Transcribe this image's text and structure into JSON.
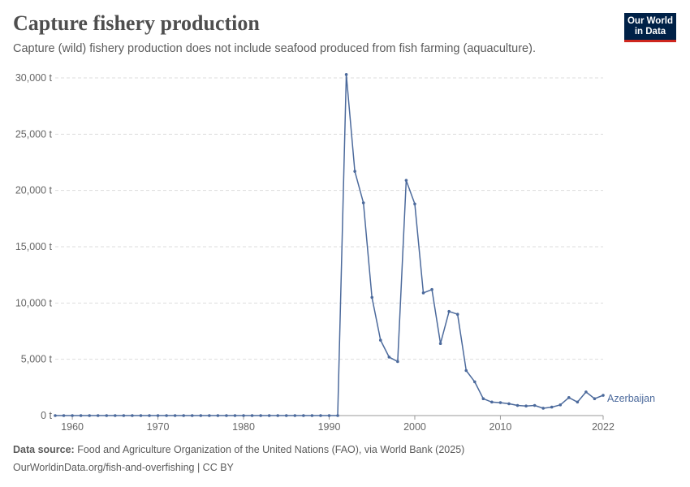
{
  "header": {
    "title": "Capture fishery production",
    "subtitle": "Capture (wild) fishery production does not include seafood produced from fish farming (aquaculture)."
  },
  "logo": {
    "line1": "Our World",
    "line2": "in Data"
  },
  "footer": {
    "source_label": "Data source:",
    "source_text": "Food and Agriculture Organization of the United Nations (FAO), via World Bank (2025)",
    "url_text": "OurWorldinData.org/fish-and-overfishing | CC BY"
  },
  "colors": {
    "series": "#4c6a9c",
    "grid": "#dddddd",
    "axis": "#999999"
  },
  "chart_data": {
    "type": "line",
    "title": "Capture fishery production",
    "xlabel": "",
    "ylabel": "",
    "xlim": [
      1958,
      2022
    ],
    "ylim": [
      0,
      30000
    ],
    "x_ticks": [
      1960,
      1970,
      1980,
      1990,
      2000,
      2010,
      2022
    ],
    "y_ticks": [
      0,
      5000,
      10000,
      15000,
      20000,
      25000,
      30000
    ],
    "y_tick_labels": [
      "0 t",
      "5,000 t",
      "10,000 t",
      "15,000 t",
      "20,000 t",
      "25,000 t",
      "30,000 t"
    ],
    "series": [
      {
        "name": "Azerbaijan",
        "x": [
          1958,
          1959,
          1960,
          1961,
          1962,
          1963,
          1964,
          1965,
          1966,
          1967,
          1968,
          1969,
          1970,
          1971,
          1972,
          1973,
          1974,
          1975,
          1976,
          1977,
          1978,
          1979,
          1980,
          1981,
          1982,
          1983,
          1984,
          1985,
          1986,
          1987,
          1988,
          1989,
          1990,
          1991,
          1992,
          1993,
          1994,
          1995,
          1996,
          1997,
          1998,
          1999,
          2000,
          2001,
          2002,
          2003,
          2004,
          2005,
          2006,
          2007,
          2008,
          2009,
          2010,
          2011,
          2012,
          2013,
          2014,
          2015,
          2016,
          2017,
          2018,
          2019,
          2020,
          2021,
          2022
        ],
        "values": [
          0,
          0,
          0,
          0,
          0,
          0,
          0,
          0,
          0,
          0,
          0,
          0,
          0,
          0,
          0,
          0,
          0,
          0,
          0,
          0,
          0,
          0,
          0,
          0,
          0,
          0,
          0,
          0,
          0,
          0,
          0,
          0,
          0,
          0,
          30300,
          21700,
          18900,
          10500,
          6700,
          5200,
          4800,
          20900,
          18800,
          10900,
          11200,
          6400,
          9250,
          9000,
          4000,
          3000,
          1500,
          1200,
          1150,
          1050,
          900,
          850,
          900,
          650,
          750,
          950,
          1600,
          1200,
          2100,
          1500,
          1800
        ]
      }
    ]
  }
}
